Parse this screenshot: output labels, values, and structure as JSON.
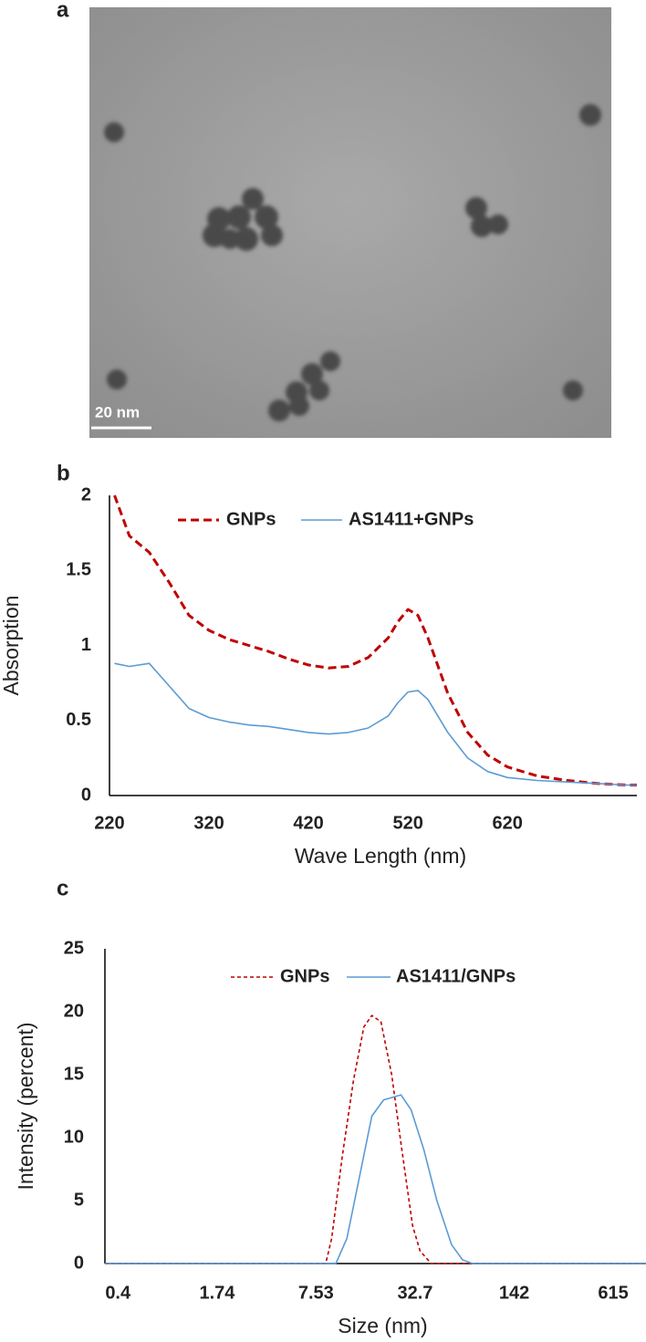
{
  "chart_data": [
    {
      "type": "image",
      "label": "a",
      "scale_bar": "20 nm"
    },
    {
      "type": "line",
      "label": "b",
      "xlabel": "Wave Length (nm)",
      "ylabel": "Absorption",
      "x": [
        225,
        240,
        260,
        280,
        300,
        320,
        340,
        360,
        380,
        400,
        420,
        440,
        460,
        480,
        500,
        510,
        520,
        530,
        540,
        560,
        580,
        600,
        620,
        650,
        680,
        710,
        740,
        750
      ],
      "xlim": [
        220,
        750
      ],
      "xticks": [
        220,
        320,
        420,
        520,
        620
      ],
      "ylim": [
        0,
        2
      ],
      "yticks": [
        0,
        0.5,
        1,
        1.5,
        2
      ],
      "grid": false,
      "legend": "top",
      "series": [
        {
          "name": "GNPs",
          "color": "#c00000",
          "line_style": "dashed",
          "values": [
            2.0,
            1.73,
            1.62,
            1.42,
            1.2,
            1.1,
            1.04,
            1.0,
            0.96,
            0.91,
            0.87,
            0.85,
            0.86,
            0.92,
            1.05,
            1.16,
            1.24,
            1.2,
            1.05,
            0.68,
            0.42,
            0.27,
            0.19,
            0.13,
            0.1,
            0.08,
            0.07,
            0.07
          ]
        },
        {
          "name": "AS1411+GNPs",
          "color": "#5b9bd5",
          "line_style": "solid",
          "values": [
            0.88,
            0.86,
            0.88,
            0.73,
            0.58,
            0.52,
            0.49,
            0.47,
            0.46,
            0.44,
            0.42,
            0.41,
            0.42,
            0.45,
            0.53,
            0.62,
            0.69,
            0.7,
            0.64,
            0.42,
            0.25,
            0.16,
            0.12,
            0.1,
            0.09,
            0.08,
            0.07,
            0.07
          ]
        }
      ]
    },
    {
      "type": "line",
      "label": "c",
      "xlabel": "Size (nm)",
      "ylabel": "Intensity (percent)",
      "xscale": "log",
      "xlim": [
        0.33,
        1000
      ],
      "xticks": [
        0.4,
        1.74,
        7.53,
        32.7,
        142,
        615
      ],
      "ylim": [
        0,
        25
      ],
      "yticks": [
        0,
        5,
        10,
        15,
        20,
        25
      ],
      "grid": false,
      "legend": "top",
      "series": [
        {
          "name": "GNPs",
          "color": "#c00000",
          "line_style": "dashed",
          "x": [
            0.33,
            8.7,
            9.5,
            11.1,
            13.1,
            15.3,
            17.2,
            19.7,
            23.1,
            26.9,
            31.5,
            35.2,
            41.5,
            1000
          ],
          "values": [
            0,
            0,
            2,
            8.5,
            14.5,
            18.8,
            19.7,
            19.2,
            15,
            9,
            3,
            1,
            0,
            0
          ]
        },
        {
          "name": "AS1411/GNPs",
          "color": "#5b9bd5",
          "line_style": "solid",
          "x": [
            0.33,
            10.1,
            11.9,
            14.4,
            17.2,
            20.5,
            26.5,
            30.8,
            37.3,
            45.1,
            56.1,
            66,
            76.7,
            1000
          ],
          "values": [
            0,
            0,
            2,
            7,
            11.7,
            13,
            13.4,
            12.2,
            9,
            5,
            1.5,
            0.3,
            0,
            0
          ]
        }
      ]
    }
  ]
}
